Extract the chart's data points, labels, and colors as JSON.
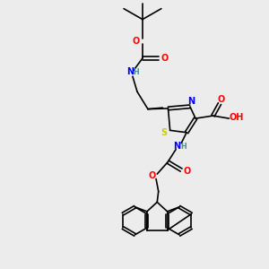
{
  "bg_color": "#ececec",
  "atom_colors": {
    "C": "#1a1a1a",
    "N": "#0000ff",
    "O": "#ff0000",
    "S": "#cccc00",
    "H": "#4a9090"
  },
  "lw": 1.2,
  "fs": 7.0,
  "fs_small": 5.8
}
